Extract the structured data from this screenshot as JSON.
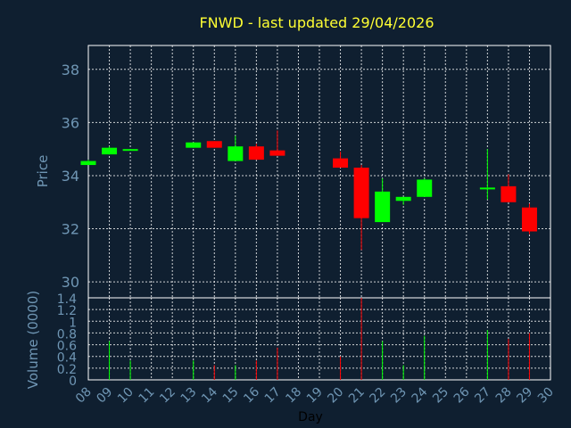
{
  "chart_data": {
    "type": "candlestick",
    "title": "FNWD - last updated 29/04/2026",
    "xlabel": "Day",
    "price_panel": {
      "ylabel": "Price",
      "ylim": [
        29.4,
        38.9
      ],
      "yticks": [
        "30",
        "32",
        "34",
        "36",
        "38"
      ]
    },
    "volume_panel": {
      "ylabel": "Volume (0000)",
      "ylim": [
        0,
        1.4
      ],
      "yticks": [
        "0",
        "0.2",
        "0.4",
        "0.6",
        "0.8",
        "1",
        "1.2",
        "1.4"
      ]
    },
    "x_ticks": [
      "08",
      "09",
      "10",
      "11",
      "12",
      "13",
      "14",
      "15",
      "16",
      "17",
      "18",
      "19",
      "20",
      "21",
      "22",
      "23",
      "24",
      "25",
      "26",
      "27",
      "28",
      "29",
      "30"
    ],
    "x_range": [
      8,
      30
    ],
    "colors": {
      "up": "#00ff00",
      "down": "#ff0000",
      "grid": "#ffffff",
      "axis_text": "#6f96b4",
      "title": "#ffff33",
      "background": "#0f1f30"
    },
    "candles": [
      {
        "day": 8,
        "open": 34.4,
        "high": 34.6,
        "low": 34.4,
        "close": 34.55,
        "volume": 0.0
      },
      {
        "day": 9,
        "open": 34.8,
        "high": 35.1,
        "low": 34.8,
        "close": 35.05,
        "volume": 0.66
      },
      {
        "day": 10,
        "open": 34.95,
        "high": 35.0,
        "low": 34.95,
        "close": 35.0,
        "volume": 0.33
      },
      {
        "day": 13,
        "open": 35.05,
        "high": 35.25,
        "low": 35.05,
        "close": 35.25,
        "volume": 0.33
      },
      {
        "day": 14,
        "open": 35.3,
        "high": 35.3,
        "low": 35.05,
        "close": 35.05,
        "volume": 0.25
      },
      {
        "day": 15,
        "open": 34.55,
        "high": 35.5,
        "low": 34.55,
        "close": 35.1,
        "volume": 0.25
      },
      {
        "day": 16,
        "open": 35.1,
        "high": 35.2,
        "low": 34.6,
        "close": 34.6,
        "volume": 0.33
      },
      {
        "day": 17,
        "open": 34.95,
        "high": 35.7,
        "low": 34.75,
        "close": 34.75,
        "volume": 0.55
      },
      {
        "day": 20,
        "open": 34.65,
        "high": 34.9,
        "low": 34.3,
        "close": 34.3,
        "volume": 0.4
      },
      {
        "day": 21,
        "open": 34.3,
        "high": 34.4,
        "low": 31.2,
        "close": 32.4,
        "volume": 1.4
      },
      {
        "day": 22,
        "open": 32.25,
        "high": 33.9,
        "low": 32.25,
        "close": 33.4,
        "volume": 0.66
      },
      {
        "day": 23,
        "open": 33.05,
        "high": 33.2,
        "low": 32.9,
        "close": 33.2,
        "volume": 0.25
      },
      {
        "day": 24,
        "open": 33.2,
        "high": 33.9,
        "low": 33.2,
        "close": 33.85,
        "volume": 0.75
      },
      {
        "day": 27,
        "open": 33.55,
        "high": 35.0,
        "low": 33.1,
        "close": 33.55,
        "volume": 0.85
      },
      {
        "day": 28,
        "open": 33.6,
        "high": 34.05,
        "low": 33.0,
        "close": 33.0,
        "volume": 0.7
      },
      {
        "day": 29,
        "open": 32.8,
        "high": 32.95,
        "low": 31.8,
        "close": 31.9,
        "volume": 0.8
      }
    ]
  }
}
